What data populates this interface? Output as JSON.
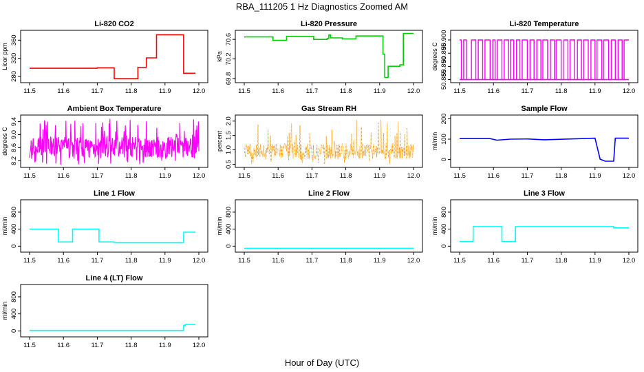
{
  "figure": {
    "title": "RBA_111205  1 Hz Diagnostics Zoomed AM",
    "xlabel": "Hour of Day (UTC)"
  },
  "chart_data": [
    {
      "type": "line",
      "title": "Li-820 CO2",
      "ylabel": "Licor ppm",
      "color": "#ff0000",
      "x_ticks": [
        "11.5",
        "11.6",
        "11.7",
        "11.8",
        "11.9",
        "12.0"
      ],
      "y_ticks": [
        "280",
        "320",
        "360"
      ],
      "xlim": [
        11.5,
        12.0
      ],
      "ylim": [
        270,
        378
      ],
      "series": [
        {
          "x": [
            11.5,
            11.7,
            11.7,
            11.75,
            11.75,
            11.82,
            11.82,
            11.845,
            11.845,
            11.875,
            11.875,
            11.955,
            11.955,
            11.99
          ],
          "y": [
            298,
            298,
            299,
            299,
            275,
            275,
            300,
            300,
            321,
            321,
            372,
            372,
            287,
            287
          ]
        }
      ]
    },
    {
      "type": "line",
      "title": "Li-820 Pressure",
      "ylabel": "kPa",
      "color": "#00cc00",
      "x_ticks": [
        "11.5",
        "11.6",
        "11.7",
        "11.8",
        "11.9",
        "12.0"
      ],
      "y_ticks": [
        "69.8",
        "70.2",
        "70.6"
      ],
      "xlim": [
        11.5,
        12.0
      ],
      "ylim": [
        69.75,
        70.75
      ],
      "series": [
        {
          "x": [
            11.5,
            11.585,
            11.585,
            11.625,
            11.625,
            11.705,
            11.705,
            11.745,
            11.745,
            11.75,
            11.75,
            11.755,
            11.755,
            11.79,
            11.79,
            11.83,
            11.83,
            11.91,
            11.91,
            11.915,
            11.915,
            11.925,
            11.925,
            11.96,
            11.96,
            11.97,
            11.97,
            12.0
          ],
          "y": [
            70.65,
            70.65,
            70.58,
            70.58,
            70.66,
            70.66,
            70.6,
            70.6,
            70.62,
            70.62,
            70.69,
            70.69,
            70.63,
            70.63,
            70.61,
            70.61,
            70.67,
            70.67,
            70.3,
            70.3,
            69.82,
            69.82,
            70.05,
            70.05,
            70.08,
            70.08,
            70.72,
            70.72
          ]
        }
      ]
    },
    {
      "type": "line",
      "title": "Li-820 Temperature",
      "ylabel": "degrees C",
      "color": "#ff00ff",
      "x_ticks": [
        "11.5",
        "11.6",
        "11.7",
        "11.8",
        "11.9",
        "12.0"
      ],
      "y_ticks": [
        "50.885",
        "50.890",
        "50.895",
        "50.900"
      ],
      "xlim": [
        11.5,
        12.0
      ],
      "ylim": [
        50.8845,
        50.903
      ],
      "series": [
        {
          "levels": [
            50.885,
            50.9
          ],
          "x_switches": [
            11.505,
            11.512,
            11.52,
            11.535,
            11.548,
            11.555,
            11.568,
            11.575,
            11.59,
            11.598,
            11.605,
            11.612,
            11.625,
            11.632,
            11.645,
            11.65,
            11.66,
            11.668,
            11.678,
            11.685,
            11.7,
            11.708,
            11.72,
            11.728,
            11.74,
            11.746,
            11.76,
            11.768,
            11.78,
            11.785,
            11.8,
            11.808,
            11.82,
            11.826,
            11.84,
            11.848,
            11.86,
            11.866,
            11.88,
            11.888,
            11.9,
            11.906,
            11.92,
            11.926,
            11.94,
            11.948,
            11.96,
            11.968,
            11.98,
            11.986
          ]
        }
      ]
    },
    {
      "type": "line",
      "title": "Ambient Box Temperature",
      "ylabel": "degrees C",
      "color": "#ff00ff",
      "x_ticks": [
        "11.5",
        "11.6",
        "11.7",
        "11.8",
        "11.9",
        "12.0"
      ],
      "y_ticks": [
        "8.2",
        "8.6",
        "9.0",
        "9.4"
      ],
      "xlim": [
        11.5,
        12.0
      ],
      "ylim": [
        8.05,
        9.55
      ],
      "series": [
        {
          "baseline": 8.62,
          "noise_low": 8.08,
          "noise_high": 9.5
        }
      ]
    },
    {
      "type": "scatter",
      "title": "Gas Stream RH",
      "ylabel": "percent",
      "color": "#ff9900",
      "x_ticks": [
        "11.5",
        "11.6",
        "11.7",
        "11.8",
        "11.9",
        "12.0"
      ],
      "y_ticks": [
        "0.5",
        "1.0",
        "1.5",
        "2.0"
      ],
      "xlim": [
        11.5,
        12.0
      ],
      "ylim": [
        0.45,
        2.15
      ],
      "series": [
        {
          "baseline": 0.95,
          "noise_low": 0.5,
          "noise_high": 2.05
        }
      ]
    },
    {
      "type": "line",
      "title": "Sample Flow",
      "ylabel": "ml/min",
      "color": "#0000ff",
      "x_ticks": [
        "11.5",
        "11.6",
        "11.7",
        "11.8",
        "11.9",
        "12.0"
      ],
      "y_ticks": [
        "0",
        "100",
        "200"
      ],
      "xlim": [
        11.5,
        12.0
      ],
      "ylim": [
        -30,
        210
      ],
      "series": [
        {
          "x": [
            11.5,
            11.59,
            11.61,
            11.65,
            11.7,
            11.75,
            11.9,
            11.915,
            11.93,
            11.955,
            11.96,
            12.0
          ],
          "y": [
            103,
            103,
            95,
            100,
            101,
            97,
            105,
            2,
            -8,
            -8,
            105,
            105
          ]
        }
      ]
    },
    {
      "type": "line",
      "title": "Line 1 Flow",
      "ylabel": "ml/min",
      "color": "#00ffff",
      "x_ticks": [
        "11.5",
        "11.6",
        "11.7",
        "11.8",
        "11.9",
        "12.0"
      ],
      "y_ticks": [
        "0",
        "400",
        "800"
      ],
      "xlim": [
        11.5,
        12.0
      ],
      "ylim": [
        -100,
        1050
      ],
      "series": [
        {
          "x": [
            11.5,
            11.585,
            11.585,
            11.627,
            11.627,
            11.705,
            11.705,
            11.75,
            11.75,
            11.955,
            11.955,
            11.99
          ],
          "y": [
            400,
            400,
            100,
            100,
            400,
            400,
            100,
            100,
            90,
            90,
            330,
            330
          ]
        }
      ]
    },
    {
      "type": "line",
      "title": "Line 2 Flow",
      "ylabel": "ml/min",
      "color": "#00ffff",
      "x_ticks": [
        "11.5",
        "11.6",
        "11.7",
        "11.8",
        "11.9",
        "12.0"
      ],
      "y_ticks": [
        "0",
        "400",
        "800"
      ],
      "xlim": [
        11.5,
        12.0
      ],
      "ylim": [
        -100,
        1050
      ],
      "series": [
        {
          "x": [
            11.5,
            12.0
          ],
          "y": [
            -50,
            -50
          ]
        }
      ]
    },
    {
      "type": "line",
      "title": "Line 3 Flow",
      "ylabel": "ml/min",
      "color": "#00ffff",
      "x_ticks": [
        "11.5",
        "11.6",
        "11.7",
        "11.8",
        "11.9",
        "12.0"
      ],
      "y_ticks": [
        "0",
        "400",
        "800"
      ],
      "xlim": [
        11.5,
        12.0
      ],
      "ylim": [
        -100,
        1050
      ],
      "series": [
        {
          "x": [
            11.5,
            11.54,
            11.54,
            11.625,
            11.625,
            11.665,
            11.665,
            11.955,
            11.955,
            12.0
          ],
          "y": [
            110,
            110,
            460,
            460,
            110,
            110,
            460,
            460,
            430,
            430
          ]
        }
      ]
    },
    {
      "type": "line",
      "title": "Line 4 (LT) Flow",
      "ylabel": "ml/min",
      "color": "#00ffff",
      "x_ticks": [
        "11.5",
        "11.6",
        "11.7",
        "11.8",
        "11.9",
        "12.0"
      ],
      "y_ticks": [
        "0",
        "400",
        "800"
      ],
      "xlim": [
        11.5,
        12.0
      ],
      "ylim": [
        -100,
        1050
      ],
      "series": [
        {
          "x": [
            11.5,
            11.955,
            11.955,
            11.96,
            11.96,
            11.99
          ],
          "y": [
            10,
            10,
            130,
            130,
            150,
            150
          ]
        }
      ]
    }
  ]
}
